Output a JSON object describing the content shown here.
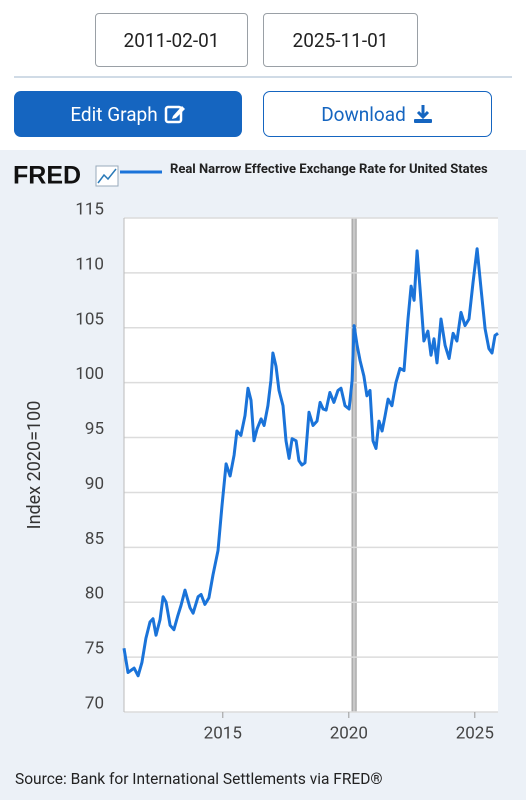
{
  "date_range": {
    "start": "2011-02-01",
    "end": "2025-11-01"
  },
  "buttons": {
    "edit": "Edit Graph",
    "download": "Download"
  },
  "logo": "FRED",
  "chart_data": {
    "type": "line",
    "y_label": "Index 2020=100",
    "source": "Source: Bank for International Settlements via FRED®",
    "xlim": [
      2011.08,
      2025.92
    ],
    "xticks": [
      2015,
      2020,
      2025
    ],
    "ylim": [
      70,
      115
    ],
    "yticks": [
      70,
      75,
      80,
      85,
      90,
      95,
      100,
      105,
      110,
      115
    ],
    "grid": true,
    "recessions": [
      [
        2020.13,
        2020.29
      ]
    ],
    "series": [
      {
        "name": "Real Narrow Effective Exchange Rate for United States",
        "color": "#1a73d9",
        "x": [
          2011.08,
          2011.24,
          2011.48,
          2011.64,
          2011.79,
          2011.95,
          2012.11,
          2012.23,
          2012.35,
          2012.51,
          2012.63,
          2012.75,
          2012.91,
          2013.06,
          2013.22,
          2013.34,
          2013.5,
          2013.7,
          2013.82,
          2014.02,
          2014.14,
          2014.29,
          2014.45,
          2014.61,
          2014.81,
          2014.97,
          2015.13,
          2015.29,
          2015.45,
          2015.56,
          2015.72,
          2015.88,
          2016.0,
          2016.12,
          2016.24,
          2016.36,
          2016.52,
          2016.64,
          2016.79,
          2016.91,
          2016.99,
          2017.11,
          2017.23,
          2017.39,
          2017.51,
          2017.63,
          2017.75,
          2017.91,
          2018.02,
          2018.14,
          2018.26,
          2018.42,
          2018.58,
          2018.74,
          2018.86,
          2018.98,
          2019.1,
          2019.25,
          2019.41,
          2019.57,
          2019.69,
          2019.85,
          2020.01,
          2020.13,
          2020.21,
          2020.33,
          2020.45,
          2020.6,
          2020.72,
          2020.84,
          2020.96,
          2021.08,
          2021.2,
          2021.32,
          2021.44,
          2021.56,
          2021.71,
          2021.87,
          2022.03,
          2022.19,
          2022.35,
          2022.47,
          2022.59,
          2022.71,
          2022.83,
          2022.98,
          2023.14,
          2023.26,
          2023.38,
          2023.5,
          2023.66,
          2023.82,
          2023.98,
          2024.14,
          2024.29,
          2024.45,
          2024.61,
          2024.77,
          2024.93,
          2025.09,
          2025.25,
          2025.41,
          2025.56,
          2025.68,
          2025.8,
          2025.92
        ],
        "values": [
          75.8,
          73.6,
          74.0,
          73.3,
          74.5,
          76.7,
          78.2,
          78.5,
          77.0,
          78.4,
          80.5,
          80.0,
          77.9,
          77.5,
          78.8,
          79.7,
          81.1,
          79.5,
          79.0,
          80.5,
          80.7,
          79.8,
          80.4,
          82.5,
          84.7,
          88.8,
          92.6,
          91.5,
          93.4,
          95.6,
          95.2,
          97.0,
          99.5,
          98.4,
          94.7,
          95.8,
          96.7,
          96.1,
          97.9,
          100.2,
          102.7,
          101.5,
          99.3,
          97.9,
          94.7,
          93.1,
          94.9,
          94.7,
          92.9,
          92.5,
          92.7,
          97.3,
          96.1,
          96.5,
          98.2,
          97.6,
          97.5,
          99.1,
          98.2,
          99.3,
          99.5,
          97.9,
          97.6,
          100.2,
          105.2,
          103.4,
          102.0,
          100.6,
          98.8,
          99.3,
          94.7,
          94.0,
          96.5,
          95.6,
          97.0,
          98.5,
          97.9,
          100.0,
          101.3,
          101.1,
          105.8,
          108.8,
          107.5,
          112.0,
          108.5,
          103.8,
          104.7,
          102.5,
          104.0,
          101.8,
          105.8,
          103.4,
          102.2,
          104.5,
          103.8,
          106.4,
          105.2,
          105.8,
          109.1,
          112.2,
          108.5,
          104.9,
          103.1,
          102.7,
          104.3,
          104.5
        ]
      }
    ]
  }
}
